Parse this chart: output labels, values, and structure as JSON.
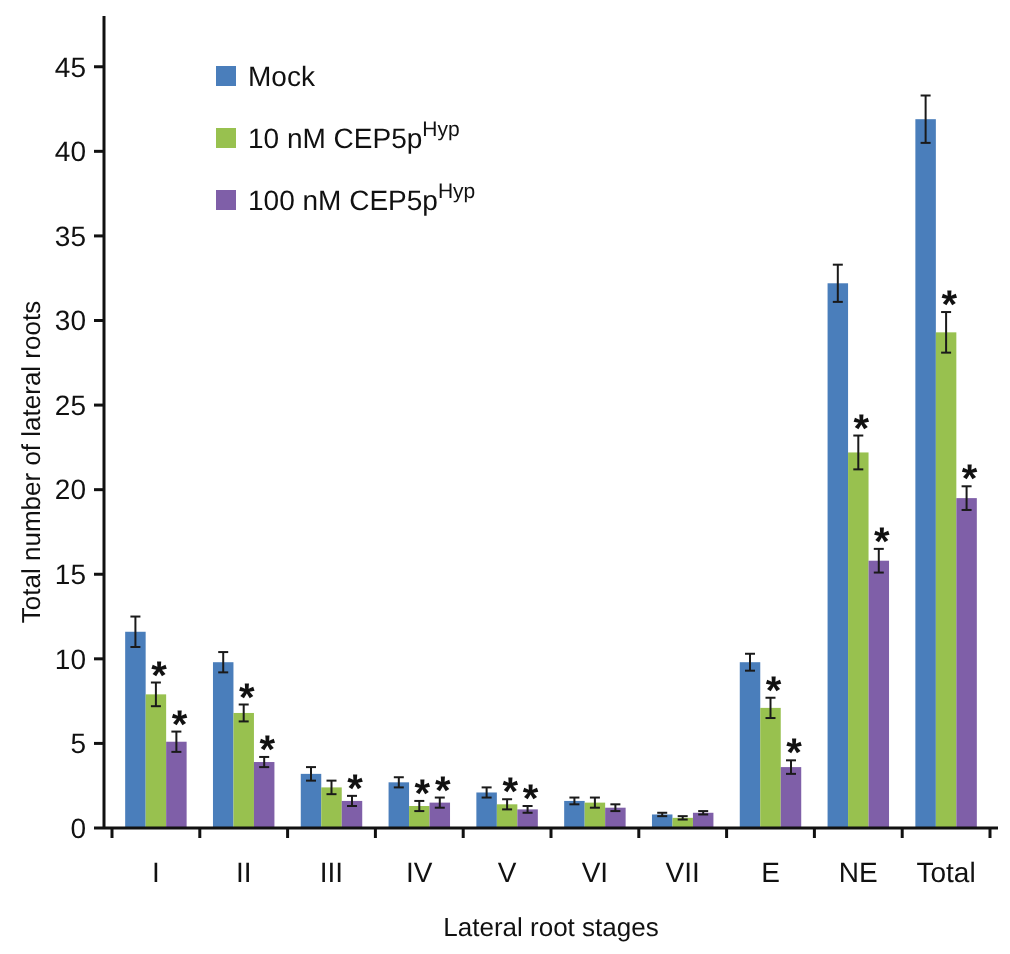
{
  "chart_data": {
    "type": "bar",
    "xlabel": "Lateral root stages",
    "ylabel": "Total number of lateral roots",
    "categories": [
      "I",
      "II",
      "III",
      "IV",
      "V",
      "VI",
      "VII",
      "E",
      "NE",
      "Total"
    ],
    "ylim": [
      0,
      48
    ],
    "yticks": [
      0,
      5,
      10,
      15,
      20,
      25,
      30,
      35,
      40,
      45
    ],
    "grid": false,
    "legend": "top left",
    "series": [
      {
        "name": "Mock",
        "color": "#4a7ebb",
        "values": [
          11.6,
          9.8,
          3.2,
          2.7,
          2.1,
          1.6,
          0.8,
          9.8,
          32.2,
          41.9
        ],
        "errors": [
          0.9,
          0.6,
          0.4,
          0.3,
          0.3,
          0.2,
          0.1,
          0.5,
          1.1,
          1.4
        ]
      },
      {
        "name": "10 nM CEP5p$^{Hyp}$",
        "color": "#98c14f",
        "values": [
          7.9,
          6.8,
          2.4,
          1.3,
          1.4,
          1.5,
          0.6,
          7.1,
          22.2,
          29.3
        ],
        "errors": [
          0.7,
          0.5,
          0.4,
          0.3,
          0.3,
          0.3,
          0.1,
          0.6,
          1.0,
          1.2
        ],
        "value_labels": [
          "*",
          "*",
          null,
          "*",
          "*",
          null,
          null,
          "*",
          "*",
          "*"
        ]
      },
      {
        "name": "100 nM CEP5p$^{Hyp}$",
        "color": "#7f5fa8",
        "values": [
          5.1,
          3.9,
          1.6,
          1.5,
          1.1,
          1.2,
          0.9,
          3.6,
          15.8,
          19.5
        ],
        "errors": [
          0.6,
          0.3,
          0.3,
          0.3,
          0.2,
          0.2,
          0.1,
          0.4,
          0.7,
          0.7
        ],
        "value_labels": [
          "*",
          "*",
          "*",
          "*",
          "*",
          null,
          null,
          "*",
          "*",
          "*"
        ]
      }
    ]
  }
}
